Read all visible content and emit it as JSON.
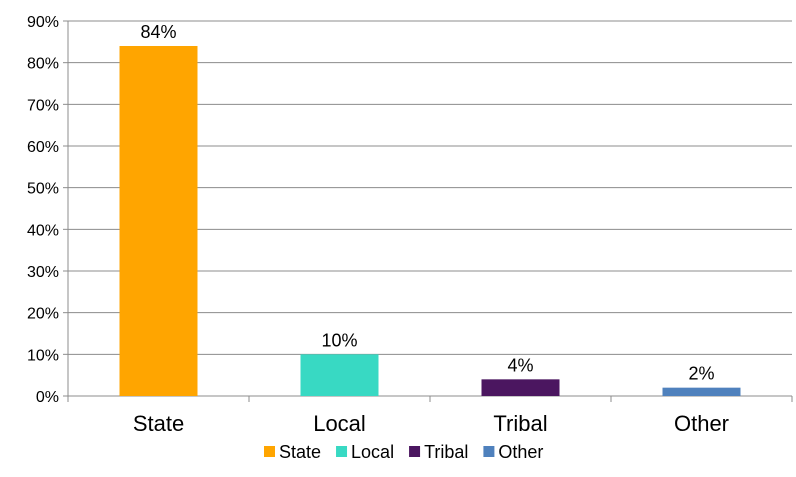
{
  "chart_data": {
    "type": "bar",
    "categories": [
      "State",
      "Local",
      "Tribal",
      "Other"
    ],
    "values": [
      84,
      10,
      4,
      2
    ],
    "data_labels": [
      "84%",
      "10%",
      "4%",
      "2%"
    ],
    "ylim": [
      0,
      90
    ],
    "yticks": [
      0,
      10,
      20,
      30,
      40,
      50,
      60,
      70,
      80,
      90
    ],
    "ytick_labels": [
      "0%",
      "10%",
      "20%",
      "30%",
      "40%",
      "50%",
      "60%",
      "70%",
      "80%",
      "90%"
    ],
    "grid": true,
    "legend_position": "bottom",
    "legend": [
      "State",
      "Local",
      "Tribal",
      "Other"
    ],
    "colors": [
      "#FFA500",
      "#38D9C3",
      "#4B1660",
      "#4F81BD"
    ],
    "title": "",
    "xlabel": "",
    "ylabel": ""
  }
}
